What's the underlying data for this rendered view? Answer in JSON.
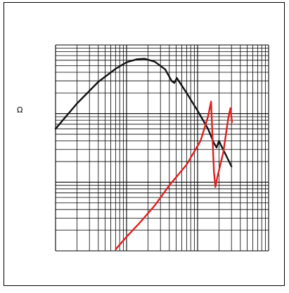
{
  "chart_data": {
    "type": "line",
    "title": "",
    "xlabel": "",
    "ylabel": "Ω",
    "x_scale": "log",
    "y_scale": "log",
    "xlim": [
      1,
      1000
    ],
    "ylim": [
      1,
      1000
    ],
    "grid": true,
    "legend": "none",
    "series": [
      {
        "color": "#111111",
        "points": [
          [
            1.0,
            60
          ],
          [
            2.0,
            140
          ],
          [
            4.0,
            290
          ],
          [
            7.0,
            450
          ],
          [
            10.0,
            560
          ],
          [
            14.0,
            620
          ],
          [
            18.0,
            630
          ],
          [
            25.0,
            570
          ],
          [
            35.0,
            440
          ],
          [
            43.0,
            300
          ],
          [
            47.0,
            280
          ],
          [
            51.0,
            330
          ],
          [
            53.0,
            310
          ],
          [
            70.0,
            200
          ],
          [
            100.0,
            110
          ],
          [
            140.0,
            60
          ],
          [
            170.0,
            37
          ],
          [
            185.0,
            32
          ],
          [
            200.0,
            40
          ],
          [
            215.0,
            34
          ],
          [
            250.0,
            25
          ],
          [
            300.0,
            17
          ]
        ]
      },
      {
        "color": "#e02020",
        "points": [
          [
            7.0,
            1.05
          ],
          [
            10.0,
            1.6
          ],
          [
            15.0,
            2.5
          ],
          [
            25.0,
            4.6
          ],
          [
            40.0,
            9.0
          ],
          [
            70.0,
            18
          ],
          [
            110.0,
            40
          ],
          [
            140.0,
            90
          ],
          [
            155.0,
            150
          ],
          [
            162.0,
            45
          ],
          [
            170.0,
            14
          ],
          [
            178.0,
            8.5
          ],
          [
            190.0,
            12
          ],
          [
            230.0,
            27
          ],
          [
            270.0,
            85
          ],
          [
            290.0,
            120
          ],
          [
            305.0,
            75
          ]
        ]
      }
    ]
  }
}
